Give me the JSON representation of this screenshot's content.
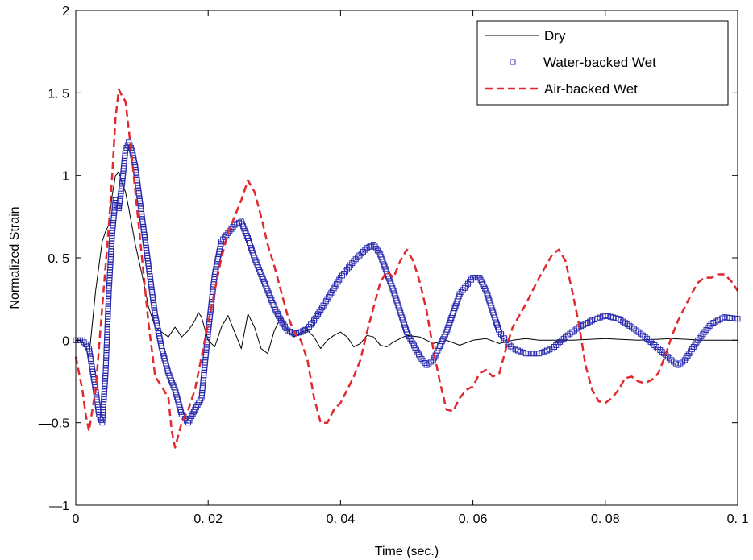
{
  "chart_data": {
    "type": "line",
    "title": "",
    "xlabel": "Time (sec.)",
    "ylabel": "Normalized Strain",
    "xlim": [
      0,
      0.1
    ],
    "ylim": [
      -1,
      2
    ],
    "xticks": [
      {
        "value": 0,
        "label": "0"
      },
      {
        "value": 0.02,
        "label": "0. 02"
      },
      {
        "value": 0.04,
        "label": "0. 04"
      },
      {
        "value": 0.06,
        "label": "0. 06"
      },
      {
        "value": 0.08,
        "label": "0. 08"
      },
      {
        "value": 0.1,
        "label": "0. 1"
      }
    ],
    "yticks": [
      {
        "value": -1,
        "label": "—1"
      },
      {
        "value": -0.5,
        "label": "—0.5"
      },
      {
        "value": 0,
        "label": "0"
      },
      {
        "value": 0.5,
        "label": "0. 5"
      },
      {
        "value": 1,
        "label": "1"
      },
      {
        "value": 1.5,
        "label": "1. 5"
      },
      {
        "value": 2,
        "label": "2"
      }
    ],
    "grid": false,
    "legend": "top-right",
    "series": [
      {
        "name": "Dry",
        "style": "solid-line",
        "color": "#000000",
        "x": [
          0,
          0.001,
          0.002,
          0.003,
          0.004,
          0.0045,
          0.005,
          0.0055,
          0.006,
          0.0065,
          0.007,
          0.0075,
          0.008,
          0.009,
          0.01,
          0.011,
          0.012,
          0.013,
          0.014,
          0.015,
          0.016,
          0.017,
          0.018,
          0.0185,
          0.019,
          0.02,
          0.021,
          0.022,
          0.023,
          0.024,
          0.025,
          0.026,
          0.027,
          0.028,
          0.029,
          0.03,
          0.031,
          0.032,
          0.033,
          0.034,
          0.035,
          0.036,
          0.037,
          0.038,
          0.039,
          0.04,
          0.041,
          0.042,
          0.043,
          0.044,
          0.045,
          0.046,
          0.047,
          0.048,
          0.05,
          0.052,
          0.054,
          0.056,
          0.058,
          0.06,
          0.062,
          0.064,
          0.066,
          0.068,
          0.07,
          0.075,
          0.08,
          0.085,
          0.09,
          0.095,
          0.1
        ],
        "y": [
          0,
          0,
          -0.1,
          0.3,
          0.6,
          0.66,
          0.7,
          0.88,
          1.0,
          1.02,
          0.95,
          0.9,
          0.8,
          0.58,
          0.4,
          0.2,
          0.08,
          0.05,
          0.02,
          0.08,
          0.02,
          0.06,
          0.12,
          0.17,
          0.14,
          0.0,
          -0.04,
          0.08,
          0.15,
          0.05,
          -0.05,
          0.16,
          0.08,
          -0.05,
          -0.08,
          0.06,
          0.14,
          0.06,
          0.02,
          0.05,
          0.06,
          0.02,
          -0.05,
          0.0,
          0.03,
          0.05,
          0.02,
          -0.04,
          -0.02,
          0.03,
          0.02,
          -0.03,
          -0.04,
          -0.01,
          0.03,
          0.02,
          -0.02,
          0.0,
          -0.03,
          0.0,
          0.01,
          -0.02,
          0.0,
          0.01,
          0.0,
          0.0,
          0.01,
          0.0,
          0.01,
          0.0,
          0.0
        ]
      },
      {
        "name": "Water-backed Wet",
        "style": "square-markers",
        "color": "#2b2bb0",
        "x": [
          0,
          0.001,
          0.002,
          0.003,
          0.0035,
          0.004,
          0.0045,
          0.005,
          0.0055,
          0.006,
          0.0065,
          0.007,
          0.0075,
          0.008,
          0.0085,
          0.009,
          0.01,
          0.011,
          0.012,
          0.013,
          0.014,
          0.015,
          0.016,
          0.017,
          0.018,
          0.019,
          0.02,
          0.021,
          0.022,
          0.023,
          0.024,
          0.025,
          0.026,
          0.027,
          0.028,
          0.029,
          0.03,
          0.031,
          0.032,
          0.033,
          0.034,
          0.035,
          0.036,
          0.038,
          0.04,
          0.042,
          0.044,
          0.045,
          0.046,
          0.048,
          0.05,
          0.052,
          0.053,
          0.054,
          0.056,
          0.058,
          0.06,
          0.061,
          0.062,
          0.064,
          0.066,
          0.068,
          0.07,
          0.072,
          0.074,
          0.076,
          0.078,
          0.08,
          0.082,
          0.084,
          0.086,
          0.088,
          0.09,
          0.091,
          0.092,
          0.094,
          0.096,
          0.098,
          0.1
        ],
        "y": [
          0,
          0,
          -0.05,
          -0.3,
          -0.45,
          -0.5,
          -0.2,
          0.3,
          0.65,
          0.85,
          0.8,
          0.95,
          1.15,
          1.2,
          1.15,
          1.05,
          0.75,
          0.45,
          0.15,
          -0.05,
          -0.2,
          -0.3,
          -0.45,
          -0.5,
          -0.42,
          -0.35,
          0.05,
          0.4,
          0.6,
          0.65,
          0.7,
          0.72,
          0.62,
          0.5,
          0.4,
          0.3,
          0.2,
          0.12,
          0.06,
          0.04,
          0.05,
          0.07,
          0.12,
          0.25,
          0.38,
          0.48,
          0.56,
          0.58,
          0.52,
          0.3,
          0.05,
          -0.1,
          -0.15,
          -0.12,
          0.05,
          0.28,
          0.38,
          0.38,
          0.3,
          0.05,
          -0.05,
          -0.08,
          -0.08,
          -0.05,
          0.02,
          0.08,
          0.12,
          0.15,
          0.13,
          0.08,
          0.02,
          -0.05,
          -0.12,
          -0.15,
          -0.12,
          0.0,
          0.1,
          0.14,
          0.13
        ]
      },
      {
        "name": "Air-backed Wet",
        "style": "dashed-line",
        "color": "#e0282e",
        "x": [
          0,
          0.001,
          0.0015,
          0.002,
          0.003,
          0.004,
          0.005,
          0.0055,
          0.006,
          0.0065,
          0.007,
          0.0075,
          0.008,
          0.0085,
          0.009,
          0.01,
          0.011,
          0.012,
          0.013,
          0.014,
          0.0145,
          0.015,
          0.016,
          0.017,
          0.018,
          0.019,
          0.02,
          0.021,
          0.022,
          0.023,
          0.024,
          0.025,
          0.026,
          0.027,
          0.028,
          0.029,
          0.03,
          0.031,
          0.032,
          0.033,
          0.034,
          0.035,
          0.036,
          0.037,
          0.038,
          0.039,
          0.04,
          0.041,
          0.042,
          0.043,
          0.044,
          0.045,
          0.046,
          0.047,
          0.048,
          0.049,
          0.05,
          0.051,
          0.052,
          0.053,
          0.054,
          0.055,
          0.056,
          0.057,
          0.058,
          0.059,
          0.06,
          0.061,
          0.062,
          0.063,
          0.064,
          0.065,
          0.066,
          0.067,
          0.068,
          0.069,
          0.07,
          0.071,
          0.072,
          0.073,
          0.074,
          0.075,
          0.076,
          0.077,
          0.078,
          0.079,
          0.08,
          0.081,
          0.082,
          0.083,
          0.084,
          0.085,
          0.086,
          0.087,
          0.088,
          0.089,
          0.09,
          0.091,
          0.092,
          0.093,
          0.094,
          0.095,
          0.096,
          0.097,
          0.098,
          0.099,
          0.1
        ],
        "y": [
          -0.1,
          -0.3,
          -0.45,
          -0.55,
          -0.3,
          0.2,
          0.7,
          1.0,
          1.35,
          1.52,
          1.48,
          1.45,
          1.28,
          1.1,
          0.9,
          0.5,
          0.1,
          -0.22,
          -0.28,
          -0.35,
          -0.55,
          -0.65,
          -0.5,
          -0.42,
          -0.3,
          -0.1,
          0.1,
          0.3,
          0.5,
          0.65,
          0.75,
          0.85,
          0.97,
          0.9,
          0.75,
          0.58,
          0.45,
          0.3,
          0.15,
          0.05,
          0.0,
          -0.12,
          -0.35,
          -0.5,
          -0.5,
          -0.42,
          -0.38,
          -0.3,
          -0.22,
          -0.12,
          0.05,
          0.2,
          0.35,
          0.42,
          0.38,
          0.48,
          0.55,
          0.48,
          0.35,
          0.18,
          -0.05,
          -0.25,
          -0.42,
          -0.43,
          -0.35,
          -0.3,
          -0.28,
          -0.2,
          -0.18,
          -0.22,
          -0.2,
          -0.05,
          0.08,
          0.15,
          0.22,
          0.3,
          0.38,
          0.45,
          0.52,
          0.55,
          0.48,
          0.3,
          0.1,
          -0.15,
          -0.3,
          -0.37,
          -0.38,
          -0.35,
          -0.3,
          -0.23,
          -0.22,
          -0.25,
          -0.26,
          -0.24,
          -0.2,
          -0.1,
          0.02,
          0.12,
          0.2,
          0.28,
          0.35,
          0.38,
          0.38,
          0.4,
          0.4,
          0.36,
          0.3
        ]
      }
    ]
  }
}
